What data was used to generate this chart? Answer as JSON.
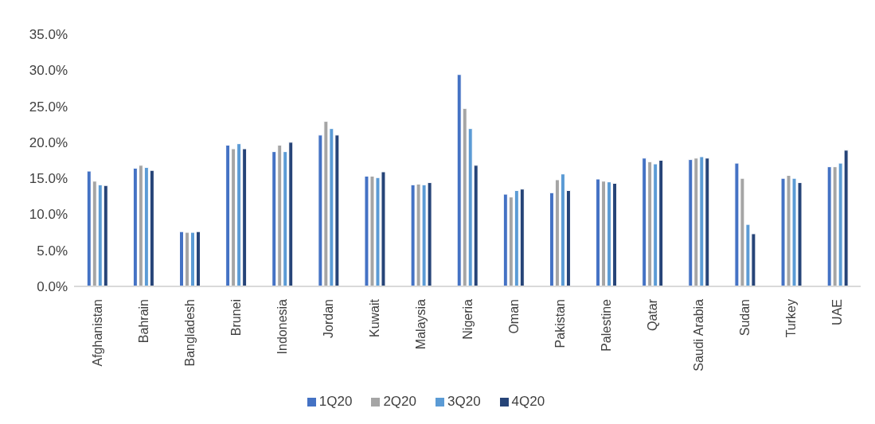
{
  "chart_data": {
    "type": "bar",
    "categories": [
      "Afghanistan",
      "Bahrain",
      "Bangladesh",
      "Brunei",
      "Indonesia",
      "Jordan",
      "Kuwait",
      "Malaysia",
      "Nigeria",
      "Oman",
      "Pakistan",
      "Palestine",
      "Qatar",
      "Saudi Arabia",
      "Sudan",
      "Turkey",
      "UAE"
    ],
    "series": [
      {
        "name": "1Q20",
        "color": "#4472c4",
        "values": [
          16.0,
          16.4,
          7.6,
          19.6,
          18.7,
          21.0,
          15.3,
          14.1,
          29.4,
          12.8,
          13.0,
          14.9,
          17.8,
          17.6,
          17.1,
          15.0,
          16.6
        ]
      },
      {
        "name": "2Q20",
        "color": "#a5a5a5",
        "values": [
          14.6,
          16.8,
          7.5,
          19.1,
          19.6,
          22.9,
          15.3,
          14.2,
          24.7,
          12.4,
          14.8,
          14.6,
          17.3,
          17.8,
          15.0,
          15.4,
          16.6
        ]
      },
      {
        "name": "3Q20",
        "color": "#5b9bd5",
        "values": [
          14.1,
          16.5,
          7.5,
          19.8,
          18.7,
          21.9,
          15.1,
          14.1,
          21.9,
          13.3,
          15.6,
          14.5,
          17.0,
          18.0,
          8.6,
          15.0,
          17.1
        ]
      },
      {
        "name": "4Q20",
        "color": "#264478",
        "values": [
          14.0,
          16.1,
          7.6,
          19.1,
          20.0,
          21.0,
          15.9,
          14.4,
          16.8,
          13.5,
          13.3,
          14.3,
          17.5,
          17.8,
          7.3,
          14.4,
          18.9
        ]
      }
    ],
    "ylim": [
      0,
      35
    ],
    "yticks": [
      {
        "value": 0,
        "label": "0.0%"
      },
      {
        "value": 5,
        "label": "5.0%"
      },
      {
        "value": 10,
        "label": "10.0%"
      },
      {
        "value": 15,
        "label": "15.0%"
      },
      {
        "value": 20,
        "label": "20.0%"
      },
      {
        "value": 25,
        "label": "25.0%"
      },
      {
        "value": 30,
        "label": "30.0%"
      },
      {
        "value": 35,
        "label": "35.0%"
      }
    ],
    "legend": "bottom"
  }
}
